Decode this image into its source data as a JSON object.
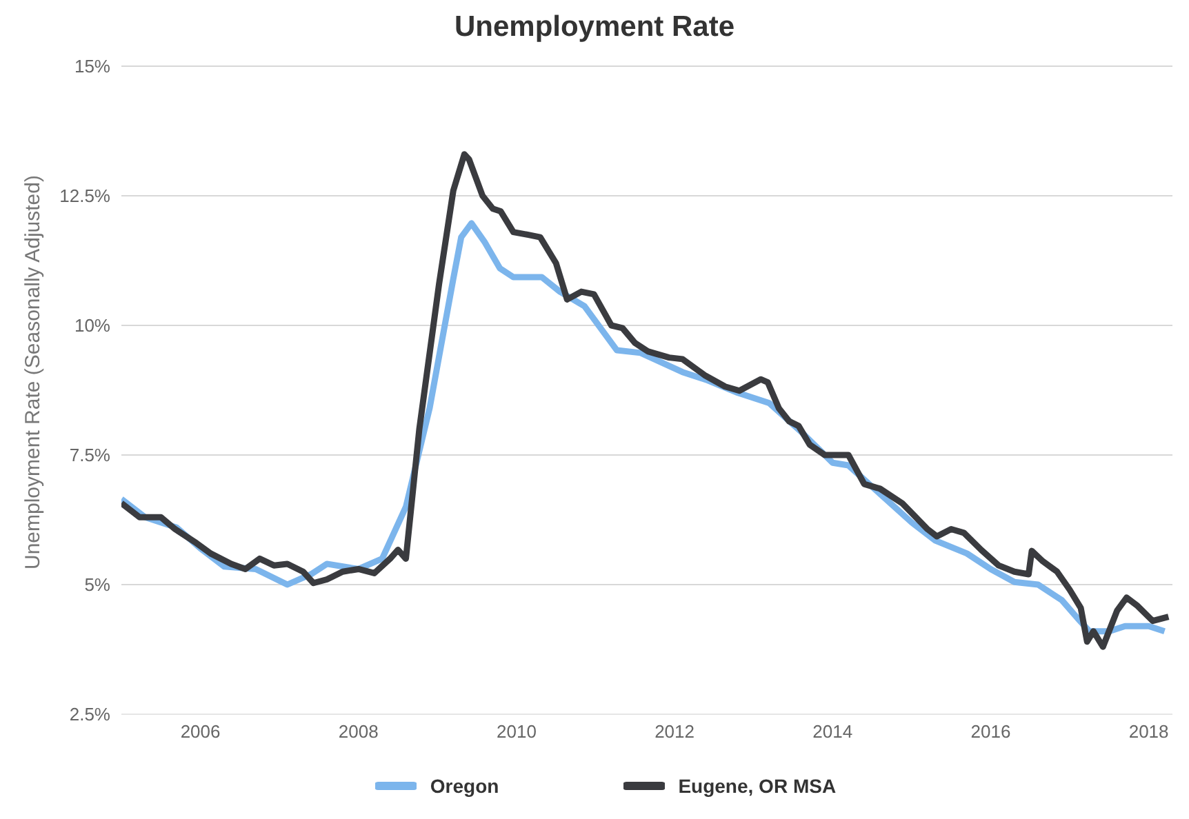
{
  "chart_data": {
    "type": "line",
    "title": "Unemployment Rate",
    "ylabel": "Unemployment Rate (Seasonally Adjusted)",
    "xlim": [
      2005,
      2018.3
    ],
    "xticks": [
      2006,
      2008,
      2010,
      2012,
      2014,
      2016,
      2018
    ],
    "ylim": [
      2.5,
      15
    ],
    "yticks": [
      {
        "value": 2.5,
        "label": "2.5%"
      },
      {
        "value": 5,
        "label": "5%"
      },
      {
        "value": 7.5,
        "label": "7.5%"
      },
      {
        "value": 10,
        "label": "10%"
      },
      {
        "value": 12.5,
        "label": "12.5%"
      },
      {
        "value": 15,
        "label": "15%"
      }
    ],
    "grid": "y",
    "legend": "bottom",
    "marker": "none",
    "line_style": "solid",
    "series": [
      {
        "name": "Oregon",
        "color": "#7cb5ec",
        "x": [
          2005,
          2005.3,
          2005.7,
          2006,
          2006.3,
          2006.7,
          2007.1,
          2007.4,
          2007.6,
          2008,
          2008.3,
          2008.6,
          2008.9,
          2009.2,
          2009.3,
          2009.43,
          2009.6,
          2009.79,
          2009.96,
          2010.32,
          2010.55,
          2010.86,
          2011.27,
          2011.57,
          2012.1,
          2012.4,
          2012.8,
          2013.2,
          2013.6,
          2014,
          2014.2,
          2014.6,
          2015,
          2015.3,
          2015.7,
          2016,
          2016.3,
          2016.6,
          2016.9,
          2017.1,
          2017.25,
          2017.5,
          2017.7,
          2018,
          2018.2
        ],
        "values": [
          6.65,
          6.3,
          6.1,
          5.7,
          5.35,
          5.3,
          5.0,
          5.2,
          5.4,
          5.3,
          5.5,
          6.5,
          8.4,
          10.9,
          11.7,
          11.97,
          11.6,
          11.1,
          10.93,
          10.93,
          10.65,
          10.37,
          9.52,
          9.47,
          9.1,
          8.95,
          8.7,
          8.5,
          7.95,
          7.35,
          7.3,
          6.75,
          6.2,
          5.85,
          5.6,
          5.3,
          5.05,
          5.0,
          4.7,
          4.35,
          4.1,
          4.1,
          4.2,
          4.2,
          4.1
        ]
      },
      {
        "name": "Eugene, OR MSA",
        "color": "#3a3b3f",
        "x": [
          2005,
          2005.23,
          2005.5,
          2005.68,
          2005.95,
          2006.13,
          2006.39,
          2006.57,
          2006.75,
          2006.93,
          2007.1,
          2007.3,
          2007.43,
          2007.6,
          2007.8,
          2008,
          2008.2,
          2008.4,
          2008.5,
          2008.6,
          2008.77,
          2009.02,
          2009.2,
          2009.34,
          2009.4,
          2009.57,
          2009.7,
          2009.8,
          2009.96,
          2010.14,
          2010.3,
          2010.5,
          2010.64,
          2010.82,
          2010.98,
          2011.2,
          2011.34,
          2011.5,
          2011.66,
          2011.93,
          2012.1,
          2012.38,
          2012.64,
          2012.82,
          2013.09,
          2013.18,
          2013.32,
          2013.45,
          2013.57,
          2013.71,
          2013.9,
          2014.2,
          2014.4,
          2014.6,
          2014.88,
          2015.2,
          2015.32,
          2015.5,
          2015.66,
          2015.88,
          2016.1,
          2016.3,
          2016.48,
          2016.52,
          2016.66,
          2016.84,
          2017,
          2017.14,
          2017.22,
          2017.3,
          2017.42,
          2017.6,
          2017.72,
          2017.85,
          2018.05,
          2018.25
        ],
        "values": [
          6.57,
          6.3,
          6.3,
          6.07,
          5.8,
          5.6,
          5.4,
          5.3,
          5.5,
          5.37,
          5.4,
          5.25,
          5.03,
          5.1,
          5.25,
          5.3,
          5.22,
          5.5,
          5.67,
          5.5,
          8.0,
          10.8,
          12.6,
          13.3,
          13.2,
          12.5,
          12.25,
          12.2,
          11.8,
          11.75,
          11.7,
          11.2,
          10.5,
          10.65,
          10.6,
          10.0,
          9.95,
          9.66,
          9.5,
          9.38,
          9.35,
          9.04,
          8.82,
          8.74,
          8.96,
          8.9,
          8.4,
          8.15,
          8.06,
          7.7,
          7.5,
          7.5,
          6.94,
          6.85,
          6.57,
          6.07,
          5.93,
          6.07,
          6.0,
          5.67,
          5.37,
          5.25,
          5.2,
          5.65,
          5.45,
          5.25,
          4.9,
          4.55,
          3.9,
          4.1,
          3.8,
          4.5,
          4.75,
          4.6,
          4.3,
          4.38
        ]
      }
    ]
  }
}
